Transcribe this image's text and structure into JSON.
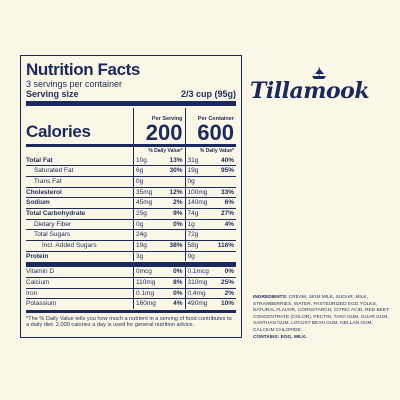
{
  "panel": {
    "title": "Nutrition Facts",
    "servings": "3 servings per container",
    "serving_size_label": "Serving size",
    "serving_size_value": "2/3 cup (95g)",
    "calories_label": "Calories",
    "per_serving_header": "Per Serving",
    "per_container_header": "Per Container",
    "calories_serving": "200",
    "calories_container": "600",
    "dv_header": "% Daily Value*",
    "rows_a": [
      {
        "label": "Total Fat",
        "bold": true,
        "indent": 0,
        "s_amt": "10g",
        "s_dv": "13%",
        "c_amt": "31g",
        "c_dv": "40%"
      },
      {
        "label": "Saturated Fat",
        "bold": false,
        "indent": 1,
        "s_amt": "6g",
        "s_dv": "30%",
        "c_amt": "19g",
        "c_dv": "95%"
      },
      {
        "label": "Trans Fat",
        "bold": false,
        "indent": 1,
        "s_amt": "0g",
        "s_dv": "",
        "c_amt": "0g",
        "c_dv": ""
      },
      {
        "label": "Cholesterol",
        "bold": true,
        "indent": 0,
        "s_amt": "35mg",
        "s_dv": "12%",
        "c_amt": "100mg",
        "c_dv": "33%"
      },
      {
        "label": "Sodium",
        "bold": true,
        "indent": 0,
        "s_amt": "45mg",
        "s_dv": "2%",
        "c_amt": "140mg",
        "c_dv": "6%"
      },
      {
        "label": "Total Carbohydrate",
        "bold": true,
        "indent": 0,
        "s_amt": "25g",
        "s_dv": "9%",
        "c_amt": "74g",
        "c_dv": "27%"
      },
      {
        "label": "Dietary Fiber",
        "bold": false,
        "indent": 1,
        "s_amt": "0g",
        "s_dv": "0%",
        "c_amt": "1g",
        "c_dv": "4%"
      },
      {
        "label": "Total Sugars",
        "bold": false,
        "indent": 1,
        "s_amt": "24g",
        "s_dv": "",
        "c_amt": "72g",
        "c_dv": ""
      },
      {
        "label": "Incl. Added Sugars",
        "bold": false,
        "indent": 2,
        "s_amt": "19g",
        "s_dv": "38%",
        "c_amt": "58g",
        "c_dv": "116%"
      },
      {
        "label": "Protein",
        "bold": true,
        "indent": 0,
        "s_amt": "3g",
        "s_dv": "",
        "c_amt": "9g",
        "c_dv": ""
      }
    ],
    "rows_b": [
      {
        "label": "Vitamin D",
        "s_amt": "0mcg",
        "s_dv": "0%",
        "c_amt": "0.1mcg",
        "c_dv": "0%"
      },
      {
        "label": "Calcium",
        "s_amt": "110mg",
        "s_dv": "8%",
        "c_amt": "310mg",
        "c_dv": "25%"
      },
      {
        "label": "Iron",
        "s_amt": "0.1mg",
        "s_dv": "0%",
        "c_amt": "0.4mg",
        "c_dv": "2%"
      },
      {
        "label": "Potassium",
        "s_amt": "160mg",
        "s_dv": "4%",
        "c_amt": "490mg",
        "c_dv": "10%"
      }
    ],
    "footnote": "*The % Daily Value tells you how much a nutrient in a serving of food contributes to a daily diet. 2,000 calories a day is used for general nutrition advice."
  },
  "brand": {
    "name": "Tillamook",
    "icon": "ship-logo-icon"
  },
  "ingredients": {
    "label": "INGREDIENTS:",
    "text": "CREAM, SKIM MILK, SUGAR, MILK, STRAWBERRIES, WATER, PASTEURIZED EGG YOLKS, NATURAL FLAVOR, CORNSTARCH, CITRIC ACID, RED BEET CONCENTRATE (COLOR), PECTIN, TARA GUM, GUAR GUM, XANTHAN GUM, LOCUST BEAN GUM, GELLAN GUM, CALCIUM CHLORIDE.",
    "contains": "CONTAINS: EGG, MILK."
  }
}
